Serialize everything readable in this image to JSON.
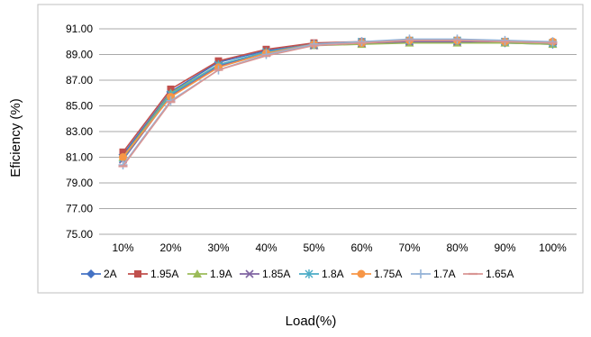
{
  "chart_data": {
    "type": "line",
    "xlabel": "Load(%)",
    "ylabel": "Eficiency (%)",
    "categories": [
      "10%",
      "20%",
      "30%",
      "40%",
      "50%",
      "60%",
      "70%",
      "80%",
      "90%",
      "100%"
    ],
    "ylim": [
      75,
      91
    ],
    "yticks": [
      "75.00",
      "77.00",
      "79.00",
      "81.00",
      "83.00",
      "85.00",
      "87.00",
      "89.00",
      "91.00"
    ],
    "grid": true,
    "legend_position": "bottom",
    "series": [
      {
        "name": "2A",
        "color": "#4472C4",
        "marker": "diamond",
        "values": [
          81.2,
          86.1,
          88.4,
          89.3,
          89.8,
          89.9,
          90.0,
          90.0,
          89.9,
          89.8
        ]
      },
      {
        "name": "1.95A",
        "color": "#C0504D",
        "marker": "square",
        "values": [
          81.4,
          86.3,
          88.5,
          89.4,
          89.9,
          90.0,
          90.1,
          90.1,
          90.0,
          89.9
        ]
      },
      {
        "name": "1.9A",
        "color": "#9BBB59",
        "marker": "triangle",
        "values": [
          81.0,
          86.0,
          88.2,
          89.2,
          89.7,
          89.8,
          89.9,
          89.9,
          89.9,
          89.8
        ]
      },
      {
        "name": "1.85A",
        "color": "#8064A2",
        "marker": "x",
        "values": [
          80.8,
          85.8,
          88.1,
          89.1,
          89.7,
          89.9,
          90.0,
          90.0,
          90.0,
          89.9
        ]
      },
      {
        "name": "1.8A",
        "color": "#4BACC6",
        "marker": "star",
        "values": [
          80.9,
          85.9,
          88.2,
          89.2,
          89.8,
          90.0,
          90.1,
          90.1,
          90.0,
          89.9
        ]
      },
      {
        "name": "1.75A",
        "color": "#F79646",
        "marker": "circle",
        "values": [
          81.0,
          85.7,
          88.0,
          89.1,
          89.8,
          89.9,
          90.1,
          90.1,
          90.0,
          90.0
        ]
      },
      {
        "name": "1.7A",
        "color": "#95B3D7",
        "marker": "plus",
        "values": [
          80.4,
          85.4,
          87.8,
          89.0,
          89.8,
          90.0,
          90.2,
          90.2,
          90.1,
          90.0
        ]
      },
      {
        "name": "1.65A",
        "color": "#D99694",
        "marker": "dash",
        "values": [
          80.3,
          85.3,
          87.8,
          88.9,
          89.7,
          89.9,
          90.1,
          90.1,
          90.0,
          89.9
        ]
      }
    ]
  }
}
